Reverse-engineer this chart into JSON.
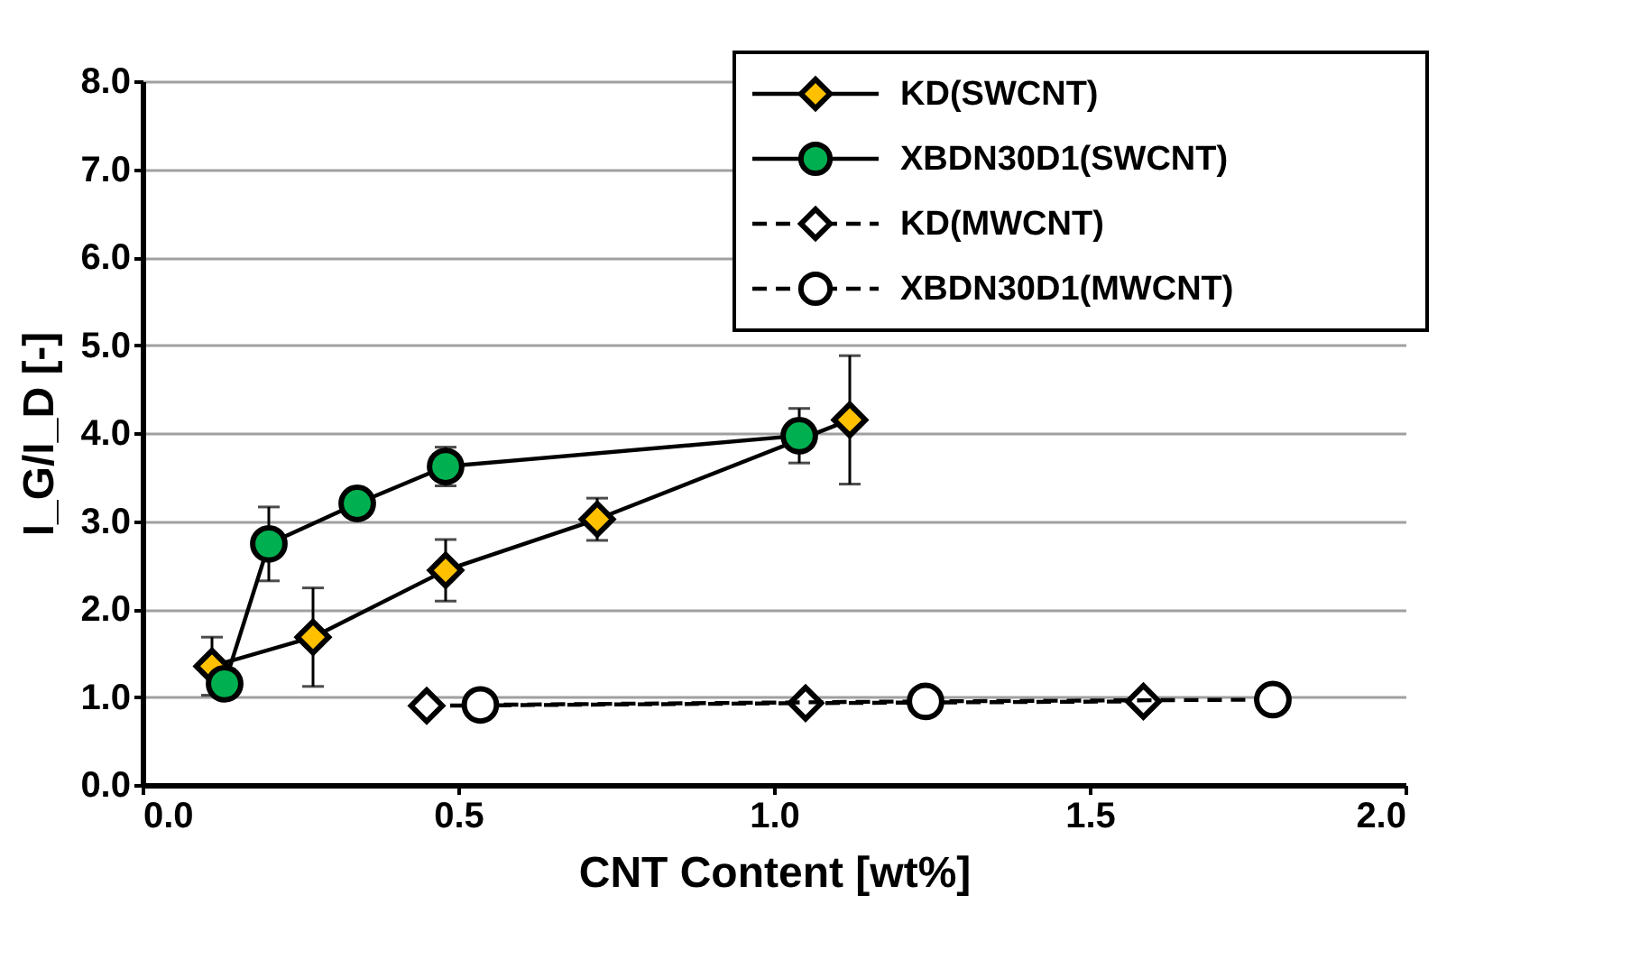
{
  "chart_data": {
    "type": "line",
    "xlabel": "CNT Content  [wt%]",
    "ylabel": "I_G/I_D [-]",
    "xlim": [
      0,
      2
    ],
    "ylim": [
      0,
      8
    ],
    "xticks": [
      {
        "value": 0,
        "label": "0.0"
      },
      {
        "value": 0.5,
        "label": "0.5"
      },
      {
        "value": 1,
        "label": "1.0"
      },
      {
        "value": 1.5,
        "label": "1.5"
      },
      {
        "value": 2,
        "label": "2.0"
      }
    ],
    "yticks": [
      {
        "value": 0,
        "label": "0.0"
      },
      {
        "value": 1,
        "label": "1.0"
      },
      {
        "value": 2,
        "label": "2.0"
      },
      {
        "value": 3,
        "label": "3.0"
      },
      {
        "value": 4,
        "label": "4.0"
      },
      {
        "value": 5,
        "label": "5.0"
      },
      {
        "value": 6,
        "label": "6.0"
      },
      {
        "value": 7,
        "label": "7.0"
      },
      {
        "value": 8,
        "label": "8.0"
      }
    ],
    "grid": "y",
    "legend": "top right",
    "series": [
      {
        "name": "KD(SWCNT)",
        "color": "#ffc000",
        "marker": "diamond",
        "line_style": "solid",
        "x": [
          0.11,
          0.27,
          0.48,
          0.72,
          1.12
        ],
        "values": [
          1.35,
          1.68,
          2.44,
          3.02,
          4.15
        ],
        "errors": [
          0.33,
          0.56,
          0.35,
          0.24,
          0.73
        ]
      },
      {
        "name": "XBDN30D1(SWCNT)",
        "color": "#00b050",
        "marker": "circle",
        "line_style": "solid",
        "x": [
          0.13,
          0.2,
          0.34,
          0.48,
          1.04
        ],
        "values": [
          1.15,
          2.74,
          3.2,
          3.62,
          3.97
        ],
        "errors": [
          null,
          0.42,
          0.15,
          0.22,
          0.31
        ]
      },
      {
        "name": "KD(MWCNT)",
        "color": "#ffffff",
        "marker": "diamond",
        "line_style": "dashed",
        "x": [
          0.45,
          1.05,
          1.585
        ],
        "values": [
          0.9,
          0.93,
          0.95
        ]
      },
      {
        "name": "XBDN30D1(MWCNT)",
        "color": "#ffffff",
        "marker": "circle",
        "line_style": "dashed",
        "x": [
          0.535,
          1.24,
          1.79
        ],
        "values": [
          0.91,
          0.95,
          0.97
        ]
      }
    ]
  }
}
